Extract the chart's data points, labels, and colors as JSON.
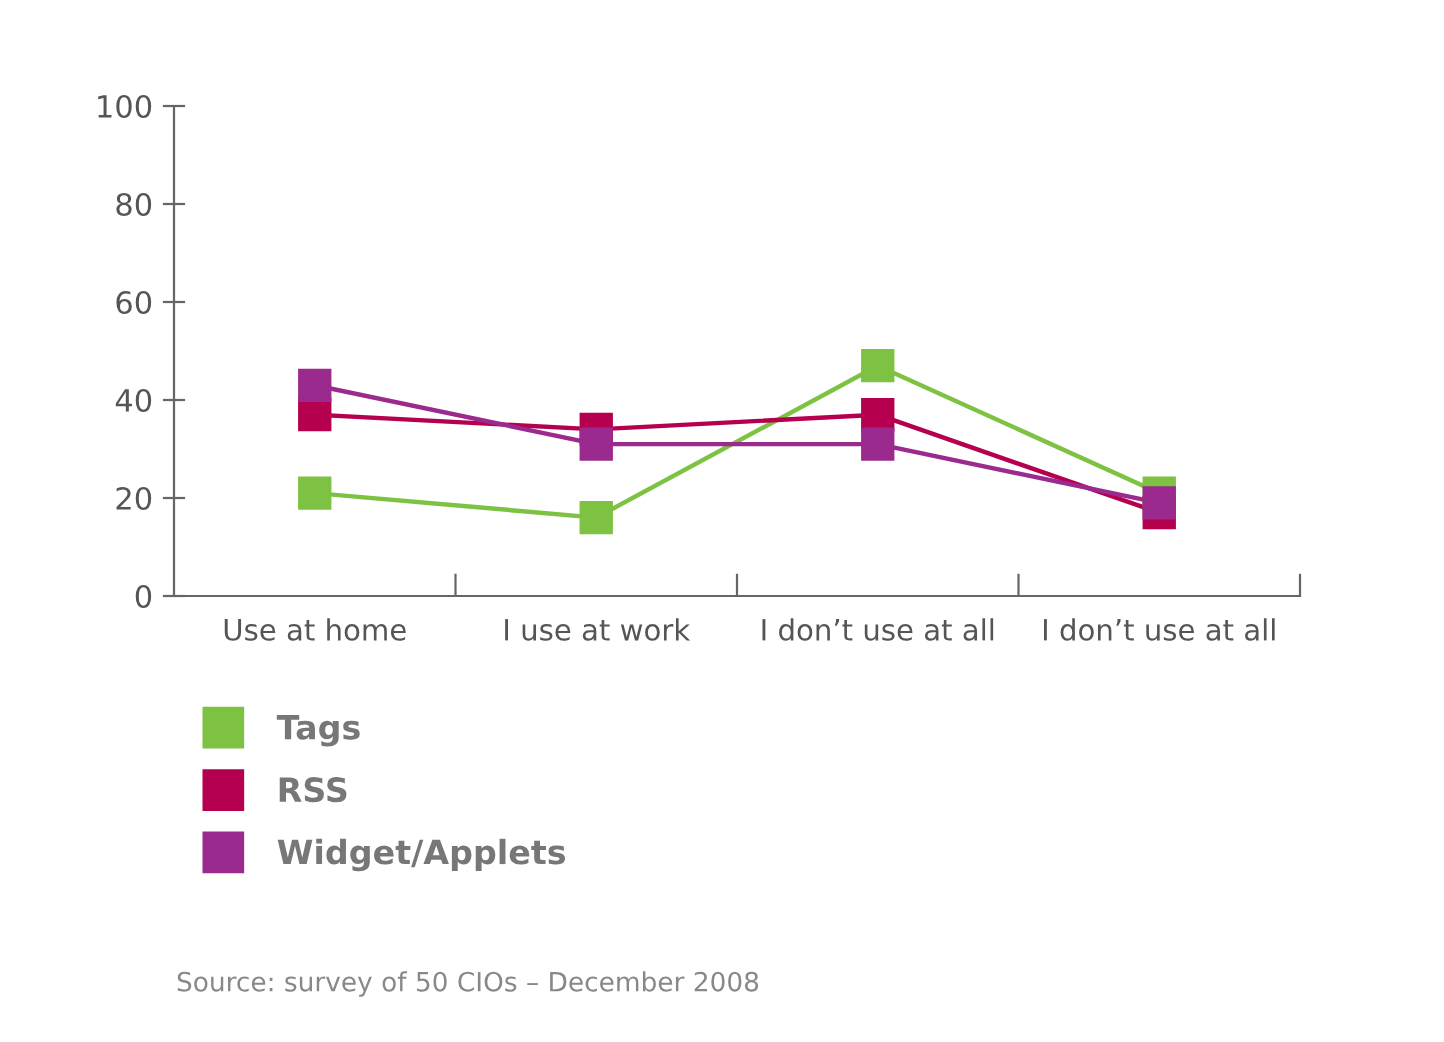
{
  "chart_data": {
    "type": "line",
    "categories": [
      "Use at home",
      "I use at work",
      "I don’t use at all",
      "I don’t use at all"
    ],
    "series": [
      {
        "name": "Tags",
        "color": "#7dc242",
        "values": [
          21,
          16,
          47,
          21
        ]
      },
      {
        "name": "RSS",
        "color": "#b5004f",
        "values": [
          37,
          34,
          37,
          17
        ]
      },
      {
        "name": "Widget/Applets",
        "color": "#9b2a8e",
        "values": [
          43,
          31,
          31,
          19
        ]
      }
    ],
    "ylim": [
      0,
      100
    ],
    "yticks": [
      0,
      20,
      40,
      60,
      80,
      100
    ],
    "grid": false,
    "legend": "bottom left",
    "marker": "square",
    "line_style": "solid",
    "annotations": [
      "Source: survey of 50 CIOs – December 2008"
    ]
  }
}
